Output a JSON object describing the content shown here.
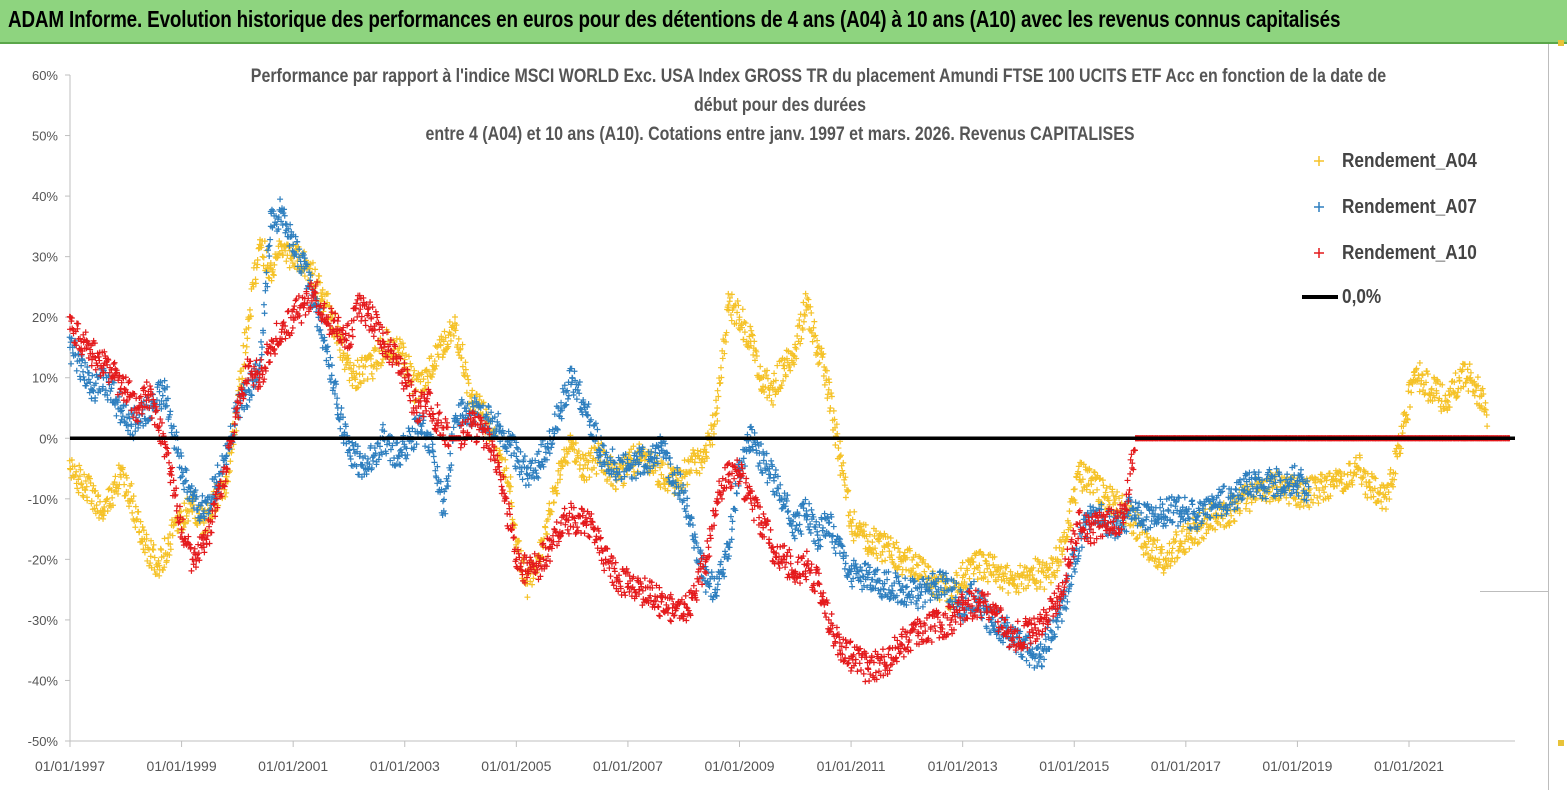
{
  "banner": {
    "title": "ADAM Informe. Evolution historique des performances en euros pour des détentions de 4 ans (A04) à 10 ans (A10) avec les revenus connus capitalisés"
  },
  "chart_data": {
    "type": "scatter",
    "title_lines": [
      "Performance par rapport à l'indice MSCI WORLD Exc. USA Index GROSS TR  du placement Amundi FTSE 100 UCITS ETF Acc en fonction de la date de",
      "début pour des durées",
      "entre 4 (A04) et 10 ans (A10). Cotations entre janv. 1997 et mars. 2026. Revenus CAPITALISES"
    ],
    "xlabel": "",
    "ylabel": "",
    "xlim": [
      1997.0,
      2022.9
    ],
    "ylim": [
      -50,
      60
    ],
    "y_ticks": [
      60,
      50,
      40,
      30,
      20,
      10,
      0,
      -10,
      -20,
      -30,
      -40,
      -50
    ],
    "y_tick_labels": [
      "60%",
      "50%",
      "40%",
      "30%",
      "20%",
      "10%",
      "0%",
      "-10%",
      "-20%",
      "-30%",
      "-40%",
      "-50%"
    ],
    "x_ticks": [
      1997,
      1999,
      2001,
      2003,
      2005,
      2007,
      2009,
      2011,
      2013,
      2015,
      2017,
      2019,
      2021
    ],
    "x_tick_labels": [
      "01/01/1997",
      "01/01/1999",
      "01/01/2001",
      "01/01/2003",
      "01/01/2005",
      "01/01/2007",
      "01/01/2009",
      "01/01/2011",
      "01/01/2013",
      "01/01/2015",
      "01/01/2017",
      "01/01/2019",
      "01/01/2021"
    ],
    "legend_position": "top-right",
    "series": [
      {
        "name": "Rendement_A04",
        "marker": "+",
        "color": "#f5c228",
        "x": [
          1997.0,
          1997.3,
          1997.6,
          1997.9,
          1998.1,
          1998.3,
          1998.6,
          1998.9,
          1999.2,
          1999.4,
          1999.6,
          1999.8,
          2000.0,
          2000.2,
          2000.4,
          2000.6,
          2000.8,
          2001.0,
          2001.3,
          2001.5,
          2001.7,
          2001.9,
          2002.1,
          2002.4,
          2002.7,
          2003.0,
          2003.2,
          2003.5,
          2003.7,
          2003.9,
          2004.2,
          2004.4,
          2004.7,
          2004.9,
          2005.0,
          2005.2,
          2005.4,
          2005.6,
          2005.8,
          2006.0,
          2006.2,
          2006.5,
          2006.8,
          2007.0,
          2007.3,
          2007.6,
          2007.9,
          2008.2,
          2008.4,
          2008.6,
          2008.8,
          2009.0,
          2009.2,
          2009.4,
          2009.6,
          2009.8,
          2010.0,
          2010.2,
          2010.4,
          2010.6,
          2010.8,
          2011.0,
          2011.3,
          2011.6,
          2011.9,
          2012.2,
          2012.5,
          2012.8,
          2013.0,
          2013.3,
          2013.6,
          2013.9,
          2014.2,
          2014.5,
          2014.7,
          2014.9,
          2015.1,
          2015.3,
          2015.6,
          2015.9,
          2016.1,
          2016.3,
          2016.6,
          2016.9,
          2017.2,
          2017.5,
          2017.8,
          2018.1,
          2018.4,
          2018.7,
          2019.0,
          2019.2,
          2019.5,
          2019.7,
          2019.9,
          2020.1,
          2020.3,
          2020.6,
          2020.9,
          2021.1,
          2021.4,
          2021.7,
          2021.9,
          2022.1,
          2022.3,
          2022.4
        ],
        "y": [
          -5,
          -8,
          -12,
          -6,
          -10,
          -17,
          -21,
          -14,
          -11,
          -14,
          -10,
          -7,
          5,
          20,
          32,
          28,
          31,
          30,
          28,
          24,
          20,
          14,
          10,
          12,
          16,
          13,
          8,
          12,
          16,
          19,
          6,
          4,
          -2,
          -8,
          -18,
          -24,
          -20,
          -12,
          -5,
          -1,
          -5,
          -3,
          -7,
          -4,
          -3,
          -6,
          -7,
          -4,
          -3,
          5,
          22,
          20,
          16,
          10,
          8,
          12,
          15,
          22,
          15,
          8,
          -3,
          -14,
          -17,
          -18,
          -20,
          -21,
          -24,
          -26,
          -23,
          -21,
          -22,
          -24,
          -22,
          -23,
          -20,
          -14,
          -6,
          -7,
          -10,
          -12,
          -14,
          -18,
          -20,
          -17,
          -15,
          -13,
          -12,
          -10,
          -8,
          -8,
          -9,
          -9,
          -8,
          -7,
          -6,
          -5,
          -8,
          -10,
          2,
          11,
          8,
          6,
          10,
          10,
          7,
          2
        ]
      },
      {
        "name": "Rendement_A07",
        "marker": "+",
        "color": "#2e7fbf",
        "x": [
          1997.0,
          1997.2,
          1997.4,
          1997.6,
          1997.9,
          1998.1,
          1998.3,
          1998.5,
          1998.7,
          1999.0,
          1999.2,
          1999.4,
          1999.6,
          1999.8,
          2000.0,
          2000.2,
          2000.4,
          2000.6,
          2000.8,
          2001.0,
          2001.2,
          2001.4,
          2001.6,
          2001.8,
          2002.0,
          2002.3,
          2002.6,
          2002.9,
          2003.1,
          2003.3,
          2003.5,
          2003.7,
          2003.9,
          2004.1,
          2004.3,
          2004.5,
          2004.7,
          2005.0,
          2005.2,
          2005.4,
          2005.6,
          2005.8,
          2006.0,
          2006.2,
          2006.5,
          2006.8,
          2007.0,
          2007.2,
          2007.4,
          2007.6,
          2007.8,
          2008.0,
          2008.2,
          2008.4,
          2008.6,
          2008.8,
          2009.0,
          2009.2,
          2009.5,
          2009.8,
          2010.0,
          2010.2,
          2010.4,
          2010.6,
          2010.8,
          2011.0,
          2011.3,
          2011.6,
          2011.9,
          2012.2,
          2012.5,
          2012.8,
          2013.0,
          2013.2,
          2013.5,
          2013.8,
          2014.0,
          2014.2,
          2014.4,
          2014.6,
          2014.8,
          2015.0,
          2015.2,
          2015.5,
          2015.8,
          2016.0,
          2016.3,
          2016.6,
          2016.9,
          2017.2,
          2017.5,
          2017.8,
          2018.1,
          2018.4,
          2018.7,
          2019.0,
          2019.2
        ],
        "y": [
          15,
          12,
          8,
          10,
          5,
          2,
          4,
          6,
          8,
          -5,
          -10,
          -12,
          -8,
          -3,
          5,
          8,
          12,
          35,
          38,
          32,
          28,
          22,
          15,
          5,
          -2,
          -5,
          0,
          -3,
          0,
          2,
          -1,
          -12,
          3,
          5,
          4,
          3,
          2,
          -3,
          -6,
          -4,
          0,
          5,
          10,
          6,
          -2,
          -5,
          -5,
          -4,
          -3,
          -2,
          -6,
          -9,
          -17,
          -24,
          -25,
          -18,
          -5,
          0,
          -5,
          -10,
          -15,
          -12,
          -16,
          -14,
          -19,
          -22,
          -23,
          -24,
          -25,
          -26,
          -24,
          -25,
          -28,
          -26,
          -30,
          -32,
          -34,
          -35,
          -36,
          -32,
          -28,
          -20,
          -14,
          -13,
          -15,
          -12,
          -13,
          -12,
          -12,
          -13,
          -11,
          -10,
          -8,
          -8,
          -7,
          -7,
          -8
        ]
      },
      {
        "name": "Rendement_A10",
        "marker": "+",
        "color": "#e41a1c",
        "x": [
          1997.0,
          1997.2,
          1997.4,
          1997.6,
          1997.8,
          1998.0,
          1998.2,
          1998.4,
          1998.6,
          1998.8,
          1999.0,
          1999.2,
          1999.4,
          1999.6,
          1999.8,
          2000.0,
          2000.2,
          2000.4,
          2000.6,
          2000.8,
          2001.0,
          2001.2,
          2001.4,
          2001.6,
          2001.8,
          2002.0,
          2002.2,
          2002.4,
          2002.6,
          2002.8,
          2003.0,
          2003.2,
          2003.4,
          2003.6,
          2003.8,
          2004.0,
          2004.2,
          2004.4,
          2004.6,
          2004.8,
          2005.0,
          2005.2,
          2005.4,
          2005.6,
          2005.8,
          2006.0,
          2006.2,
          2006.4,
          2006.6,
          2006.8,
          2007.0,
          2007.2,
          2007.4,
          2007.6,
          2007.8,
          2008.0,
          2008.2,
          2008.4,
          2008.6,
          2008.8,
          2009.0,
          2009.2,
          2009.4,
          2009.6,
          2009.8,
          2010.0,
          2010.2,
          2010.4,
          2010.6,
          2010.8,
          2011.0,
          2011.3,
          2011.6,
          2011.9,
          2012.2,
          2012.5,
          2012.8,
          2013.0,
          2013.3,
          2013.6,
          2013.9,
          2014.2,
          2014.5,
          2014.7,
          2014.9,
          2015.1,
          2015.3,
          2015.6,
          2015.9,
          2016.1,
          2016.4,
          2016.8,
          2017.2,
          2017.6,
          2018.0,
          2018.4,
          2018.8,
          2019.2,
          2019.6,
          2020.0,
          2020.4,
          2020.8,
          2021.2,
          2021.6,
          2022.0,
          2022.4,
          2022.8
        ],
        "y": [
          18,
          16,
          14,
          12,
          10,
          8,
          5,
          7,
          2,
          -5,
          -15,
          -20,
          -18,
          -12,
          -5,
          5,
          12,
          10,
          15,
          18,
          20,
          22,
          24,
          20,
          18,
          17,
          22,
          20,
          16,
          14,
          10,
          5,
          6,
          3,
          0,
          0,
          2,
          1,
          -2,
          -10,
          -20,
          -22,
          -21,
          -18,
          -14,
          -13,
          -14,
          -15,
          -20,
          -23,
          -24,
          -25,
          -26,
          -27,
          -28,
          -29,
          -26,
          -20,
          -10,
          -6,
          -6,
          -10,
          -14,
          -18,
          -20,
          -22,
          -21,
          -24,
          -30,
          -35,
          -36,
          -38,
          -37,
          -34,
          -32,
          -31,
          -30,
          -28,
          -27,
          -29,
          -33,
          -32,
          -30,
          -27,
          -20,
          -14,
          -15,
          -14,
          -13,
          0,
          0,
          0,
          0,
          0,
          0,
          0,
          0,
          0,
          0,
          0,
          0,
          0,
          0,
          0,
          0,
          0,
          0
        ]
      },
      {
        "name": "0,0%",
        "marker": "line",
        "color": "#000000",
        "x": [
          1997.0,
          2022.9
        ],
        "y": [
          0,
          0
        ]
      }
    ]
  }
}
